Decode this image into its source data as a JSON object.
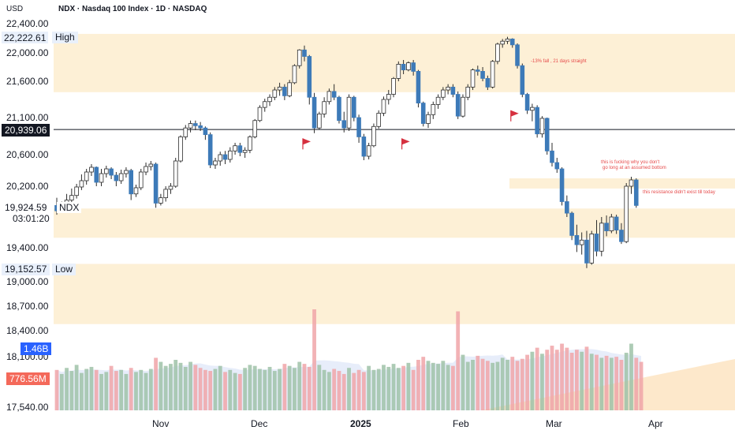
{
  "header": {
    "currency": "USD",
    "symbol_title": "NDX · Nasdaq 100 Index · 1D · NASDAQ"
  },
  "chart_data": {
    "type": "candlestick",
    "symbol": "NDX",
    "timeframe": "1D",
    "y_axis": {
      "ticks": [
        22400,
        22000,
        21600,
        21100,
        20600,
        20200,
        19400,
        19000,
        18700,
        18400,
        18100,
        17540
      ],
      "tick_labels": [
        "22,400.00",
        "22,000.00",
        "21,600.00",
        "21,100.00",
        "20,600.00",
        "20,200.00",
        "19,400.00",
        "19,000.00",
        "18,700.00",
        "18,400.00",
        "18,100.00",
        "17,540.00"
      ]
    },
    "x_axis": {
      "labels": [
        "Nov",
        "Dec",
        "2025",
        "Feb",
        "Mar",
        "Apr"
      ],
      "bold_label": "2025"
    },
    "price_badges": {
      "high_value": "22,222.61",
      "high_label": "High",
      "current_value": "20,939.06",
      "ndx_value": "19,924.59",
      "ndx_label": "NDX",
      "countdown": "03:01:20",
      "low_value": "19,152.57",
      "low_label": "Low",
      "volume_value": "1.46B",
      "volume_ma_value": "776.56M"
    },
    "horizontal_line": 20939.06,
    "zones": [
      {
        "from": 21450,
        "to": 22260
      },
      {
        "from": 20170,
        "to": 20300
      },
      {
        "from": 19530,
        "to": 19910
      },
      {
        "from": 18480,
        "to": 19210
      }
    ],
    "candles": [
      [
        19950,
        20050,
        19830,
        19880
      ],
      [
        19880,
        20000,
        19860,
        19960
      ],
      [
        19960,
        20100,
        19920,
        20020
      ],
      [
        20020,
        20170,
        19990,
        20080
      ],
      [
        20080,
        20230,
        20040,
        20190
      ],
      [
        20190,
        20350,
        20150,
        20270
      ],
      [
        20270,
        20420,
        20220,
        20380
      ],
      [
        20380,
        20480,
        20330,
        20440
      ],
      [
        20440,
        20450,
        20200,
        20250
      ],
      [
        20250,
        20420,
        20200,
        20360
      ],
      [
        20360,
        20460,
        20310,
        20420
      ],
      [
        20420,
        20440,
        20290,
        20340
      ],
      [
        20340,
        20380,
        20200,
        20270
      ],
      [
        20270,
        20410,
        20230,
        20360
      ],
      [
        20360,
        20440,
        20310,
        20400
      ],
      [
        20400,
        20420,
        20020,
        20100
      ],
      [
        20100,
        20220,
        20060,
        20180
      ],
      [
        20180,
        20420,
        20150,
        20380
      ],
      [
        20380,
        20500,
        20340,
        20450
      ],
      [
        20450,
        20520,
        20400,
        20480
      ],
      [
        20480,
        20500,
        19920,
        19980
      ],
      [
        19980,
        20100,
        19950,
        20050
      ],
      [
        20050,
        20200,
        20000,
        20160
      ],
      [
        20160,
        20240,
        20100,
        20200
      ],
      [
        20200,
        20560,
        20180,
        20520
      ],
      [
        20520,
        20860,
        20500,
        20840
      ],
      [
        20840,
        21000,
        20800,
        20960
      ],
      [
        20960,
        21060,
        20900,
        21020
      ],
      [
        21020,
        21060,
        20930,
        20990
      ],
      [
        20990,
        21040,
        20920,
        20960
      ],
      [
        20960,
        20980,
        20800,
        20870
      ],
      [
        20870,
        20900,
        20430,
        20470
      ],
      [
        20470,
        20560,
        20420,
        20520
      ],
      [
        20520,
        20640,
        20460,
        20600
      ],
      [
        20600,
        20650,
        20480,
        20540
      ],
      [
        20540,
        20700,
        20500,
        20650
      ],
      [
        20650,
        20760,
        20600,
        20720
      ],
      [
        20720,
        20760,
        20580,
        20630
      ],
      [
        20630,
        20700,
        20560,
        20660
      ],
      [
        20660,
        20860,
        20620,
        20840
      ],
      [
        20840,
        21080,
        20820,
        21060
      ],
      [
        21060,
        21270,
        21040,
        21240
      ],
      [
        21240,
        21360,
        21180,
        21320
      ],
      [
        21320,
        21420,
        21260,
        21380
      ],
      [
        21380,
        21520,
        21340,
        21480
      ],
      [
        21480,
        21580,
        21400,
        21520
      ],
      [
        21520,
        21560,
        21340,
        21400
      ],
      [
        21400,
        21620,
        21380,
        21580
      ],
      [
        21580,
        21840,
        21560,
        21820
      ],
      [
        21820,
        22050,
        21780,
        22040
      ],
      [
        22040,
        22100,
        21880,
        21950
      ],
      [
        21950,
        21970,
        21280,
        21380
      ],
      [
        21380,
        21440,
        20890,
        20960
      ],
      [
        20960,
        21180,
        20940,
        21150
      ],
      [
        21150,
        21380,
        21100,
        21320
      ],
      [
        21320,
        21500,
        21280,
        21460
      ],
      [
        21460,
        21560,
        21340,
        21380
      ],
      [
        21380,
        21400,
        21020,
        21060
      ],
      [
        21060,
        21180,
        20900,
        20960
      ],
      [
        20960,
        21420,
        20920,
        21380
      ],
      [
        21380,
        21400,
        21050,
        21100
      ],
      [
        21100,
        21140,
        20760,
        20840
      ],
      [
        20840,
        20880,
        20530,
        20580
      ],
      [
        20580,
        20760,
        20540,
        20720
      ],
      [
        20720,
        21020,
        20700,
        20980
      ],
      [
        20980,
        21200,
        20950,
        21160
      ],
      [
        21160,
        21390,
        21120,
        21350
      ],
      [
        21350,
        21480,
        21280,
        21420
      ],
      [
        21420,
        21660,
        21380,
        21640
      ],
      [
        21640,
        21880,
        21600,
        21840
      ],
      [
        21840,
        21900,
        21700,
        21760
      ],
      [
        21760,
        21880,
        21740,
        21860
      ],
      [
        21860,
        21900,
        21680,
        21740
      ],
      [
        21740,
        21760,
        21240,
        21300
      ],
      [
        21300,
        21320,
        20980,
        21020
      ],
      [
        21020,
        21180,
        20960,
        21140
      ],
      [
        21140,
        21320,
        21080,
        21280
      ],
      [
        21280,
        21420,
        21220,
        21380
      ],
      [
        21380,
        21520,
        21340,
        21480
      ],
      [
        21480,
        21560,
        21420,
        21520
      ],
      [
        21520,
        21560,
        21380,
        21420
      ],
      [
        21420,
        21460,
        21080,
        21120
      ],
      [
        21120,
        21420,
        21100,
        21380
      ],
      [
        21380,
        21560,
        21340,
        21520
      ],
      [
        21520,
        21780,
        21480,
        21760
      ],
      [
        21760,
        21820,
        21680,
        21740
      ],
      [
        21740,
        21800,
        21600,
        21640
      ],
      [
        21640,
        21680,
        21480,
        21520
      ],
      [
        21520,
        21900,
        21500,
        21880
      ],
      [
        21880,
        22140,
        21840,
        22120
      ],
      [
        22120,
        22190,
        22070,
        22160
      ],
      [
        22160,
        22220,
        22120,
        22190
      ],
      [
        22190,
        22200,
        22070,
        22110
      ],
      [
        22110,
        22130,
        21780,
        21820
      ],
      [
        21820,
        21850,
        21380,
        21420
      ],
      [
        21420,
        21440,
        21150,
        21200
      ],
      [
        21200,
        21290,
        21050,
        21240
      ],
      [
        21240,
        21270,
        20830,
        20880
      ],
      [
        20880,
        21120,
        20830,
        21090
      ],
      [
        21090,
        21100,
        20600,
        20650
      ],
      [
        20650,
        20760,
        20450,
        20500
      ],
      [
        20500,
        20560,
        20370,
        20420
      ],
      [
        20420,
        20440,
        19950,
        20000
      ],
      [
        20000,
        20080,
        19800,
        19850
      ],
      [
        19850,
        19870,
        19500,
        19560
      ],
      [
        19560,
        19700,
        19350,
        19440
      ],
      [
        19440,
        19600,
        19320,
        19500
      ],
      [
        19500,
        19620,
        19160,
        19220
      ],
      [
        19220,
        19620,
        19200,
        19580
      ],
      [
        19580,
        19760,
        19300,
        19360
      ],
      [
        19360,
        19800,
        19300,
        19720
      ],
      [
        19720,
        19820,
        19550,
        19620
      ],
      [
        19620,
        19840,
        19590,
        19800
      ],
      [
        19800,
        19830,
        19580,
        19630
      ],
      [
        19630,
        19720,
        19450,
        19480
      ],
      [
        19480,
        20240,
        19460,
        20200
      ],
      [
        20200,
        20320,
        20100,
        20280
      ],
      [
        20280,
        20300,
        19920,
        19950
      ]
    ],
    "volume_bars": [
      0.4,
      0.36,
      0.42,
      0.39,
      0.45,
      0.37,
      0.41,
      0.43,
      0.4,
      0.36,
      0.38,
      0.44,
      0.39,
      0.4,
      0.36,
      0.42,
      0.38,
      0.4,
      0.37,
      0.41,
      0.52,
      0.48,
      0.44,
      0.46,
      0.5,
      0.47,
      0.43,
      0.48,
      0.45,
      0.42,
      0.4,
      0.39,
      0.41,
      0.44,
      0.38,
      0.4,
      0.37,
      0.36,
      0.42,
      0.45,
      0.44,
      0.41,
      0.4,
      0.43,
      0.39,
      0.41,
      0.46,
      0.44,
      0.42,
      0.48,
      0.46,
      0.43,
      1.0,
      0.45,
      0.4,
      0.38,
      0.41,
      0.39,
      0.36,
      0.42,
      0.37,
      0.4,
      0.38,
      0.44,
      0.4,
      0.41,
      0.45,
      0.43,
      0.46,
      0.42,
      0.44,
      0.47,
      0.4,
      0.5,
      0.53,
      0.49,
      0.47,
      0.46,
      0.49,
      0.45,
      0.44,
      0.98,
      0.55,
      0.48,
      0.5,
      0.54,
      0.51,
      0.49,
      0.47,
      0.48,
      0.52,
      0.5,
      0.53,
      0.49,
      0.51,
      0.55,
      0.58,
      0.62,
      0.56,
      0.6,
      0.64,
      0.6,
      0.66,
      0.62,
      0.57,
      0.6,
      0.58,
      0.63,
      0.56,
      0.55,
      0.52,
      0.54,
      0.52,
      0.53,
      0.5,
      0.57,
      0.66,
      0.52,
      0.48
    ],
    "flags": [
      {
        "index": 50,
        "price": 20820
      },
      {
        "index": 70,
        "price": 20820
      },
      {
        "index": 92,
        "price": 21200
      }
    ],
    "annotations": [
      "-13% fall , 21 days straight",
      "this is fucking why you don't",
      "go long at an assumed bottom",
      "this resistance didn't exist till today"
    ],
    "colors": {
      "up": "#ffffff",
      "down": "#3d7ab8",
      "wick": "#2c2c2c",
      "zone": "#fdf0d6",
      "flag": "#d6303f",
      "annotation": "#e64a4a",
      "volume_up": "#9fc2a8",
      "volume_down": "#f0a5a8",
      "volume_ma": "#c9d8f5"
    }
  }
}
